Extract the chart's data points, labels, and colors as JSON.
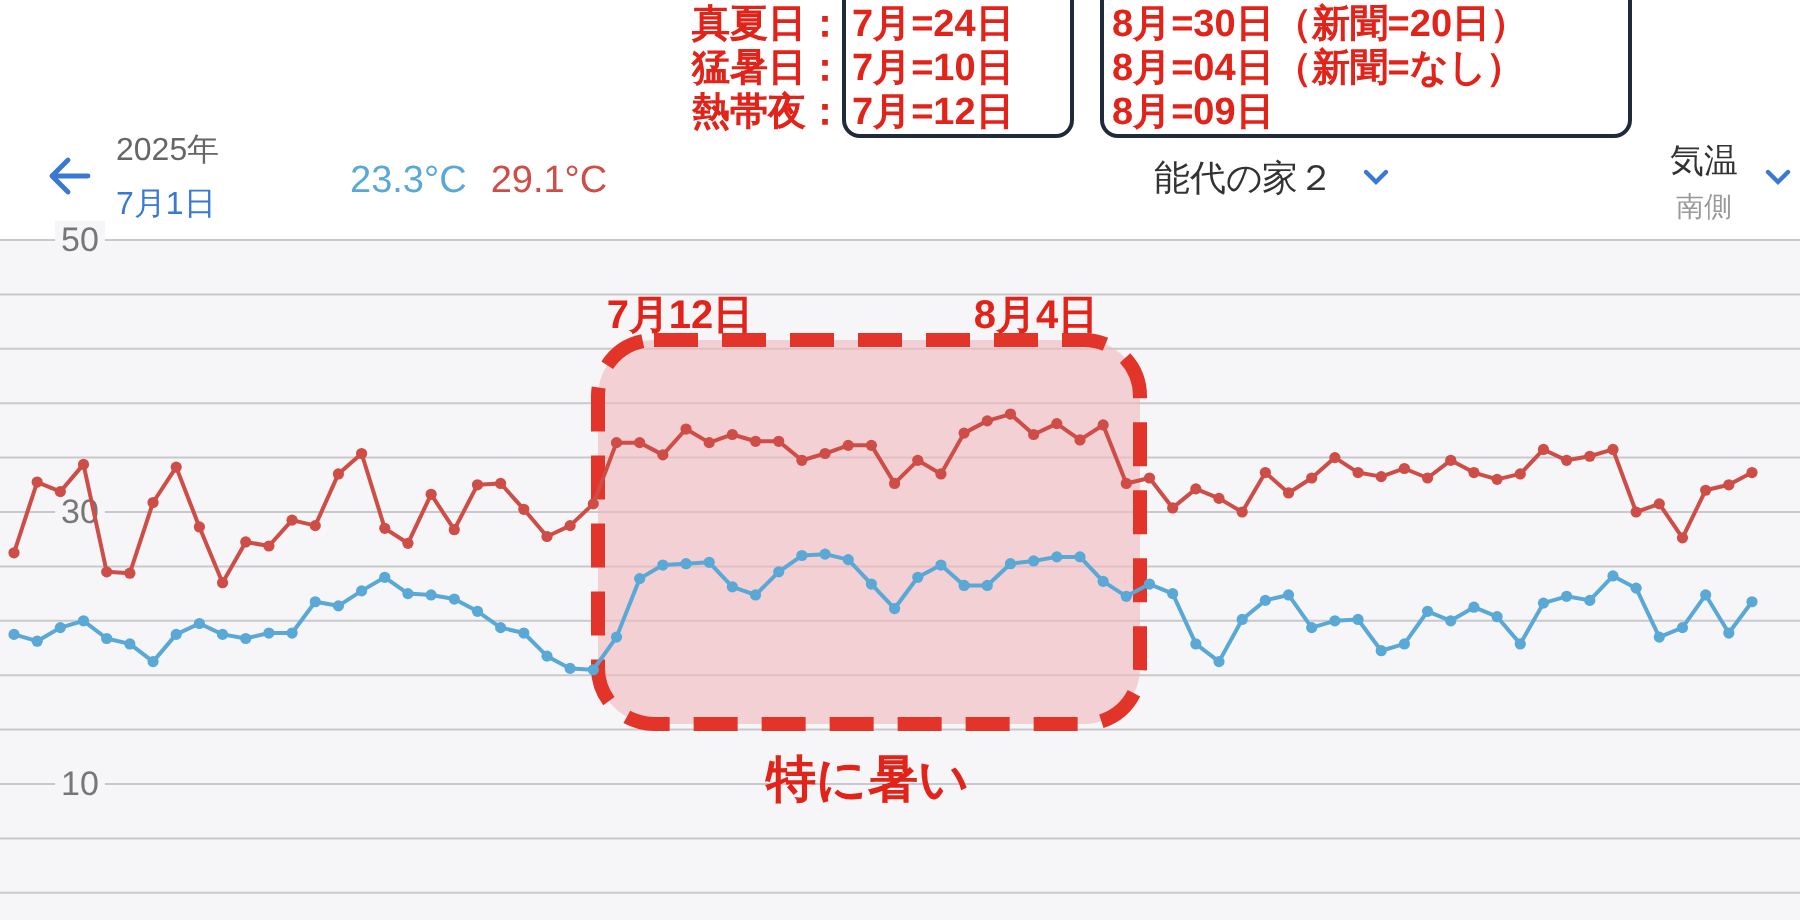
{
  "chart_data": {
    "type": "line",
    "title": "能代の家２",
    "subtitle": "南側",
    "ylabel": "気温",
    "annotations": [
      "真夏日：",
      "7月=24日",
      "8月=30日（新聞=20日）",
      "猛暑日：",
      "7月=10日",
      "8月=04日（新聞=なし）",
      "熱帯夜：",
      "7月=12日",
      "8月=09日",
      "7月12日",
      "8月4日",
      "特に暑い",
      "2025年",
      "7月1日"
    ],
    "categories": [
      null,
      null,
      null,
      null,
      null,
      null,
      null,
      null,
      null,
      null,
      null,
      null,
      null,
      null,
      null,
      null,
      null,
      null,
      null,
      null,
      null,
      null,
      null,
      null,
      null,
      null,
      null,
      null,
      null,
      null,
      null,
      null,
      null,
      null,
      null,
      null,
      null,
      null,
      null,
      null,
      null,
      null,
      null,
      null,
      null,
      null,
      null,
      null,
      null,
      null,
      null,
      null,
      null,
      null,
      null,
      null,
      null,
      null,
      null,
      null,
      null,
      null,
      null,
      null,
      null,
      null,
      null,
      null,
      null,
      null,
      null,
      null,
      null,
      null,
      null,
      null
    ],
    "series": [
      {
        "name": "23.3°C",
        "color": "#5aa8d6",
        "values": [
          21.0,
          20.5,
          21.5,
          22.0,
          20.7,
          20.3,
          19.0,
          21.0,
          21.8,
          21.0,
          20.7,
          21.1,
          21.1,
          23.4,
          23.1,
          24.2,
          25.2,
          24.0,
          23.9,
          23.6,
          22.7,
          21.5,
          21.1,
          19.4,
          18.5,
          18.4,
          20.8,
          25.1,
          26.1,
          26.2,
          26.3,
          24.5,
          23.9,
          25.6,
          26.8,
          26.9,
          26.5,
          24.7,
          22.9,
          25.2,
          26.1,
          24.6,
          24.6,
          26.2,
          26.4,
          26.7,
          26.7,
          24.9,
          23.8,
          24.7,
          24.0,
          20.3,
          19.0,
          22.1,
          23.5,
          23.9,
          21.5,
          22.0,
          22.1,
          19.8,
          20.3,
          22.7,
          22.0,
          23.0,
          22.3,
          20.3,
          23.3,
          23.8,
          23.5,
          25.3,
          24.4,
          20.8,
          21.5,
          23.9,
          21.1,
          23.4
        ]
      },
      {
        "name": "29.1°C",
        "color": "#cf4d47",
        "values": [
          27.0,
          32.2,
          31.5,
          33.5,
          25.6,
          25.5,
          30.7,
          33.3,
          28.9,
          24.8,
          27.8,
          27.5,
          29.4,
          29.0,
          32.8,
          34.3,
          28.8,
          27.7,
          31.3,
          28.7,
          32.0,
          32.1,
          30.2,
          28.2,
          29.0,
          30.6,
          35.1,
          35.1,
          34.2,
          36.1,
          35.1,
          35.7,
          35.2,
          35.2,
          33.8,
          34.3,
          34.9,
          34.9,
          32.1,
          33.8,
          32.8,
          35.8,
          36.7,
          37.2,
          35.7,
          36.5,
          35.3,
          36.4,
          32.1,
          32.5,
          30.3,
          31.7,
          31.0,
          30.0,
          32.9,
          31.4,
          32.5,
          34.0,
          32.9,
          32.6,
          33.2,
          32.5,
          33.8,
          32.9,
          32.4,
          32.8,
          34.6,
          33.8,
          34.1,
          34.6,
          30.0,
          30.6,
          28.1,
          31.6,
          32.0,
          32.9
        ]
      }
    ],
    "ylim": [
      0,
      50
    ],
    "yticks": [
      {
        "value": 2,
        "label": null
      },
      {
        "value": 6,
        "label": null
      },
      10,
      {
        "value": 14,
        "label": null
      },
      {
        "value": 18,
        "label": null
      },
      {
        "value": 22,
        "label": null
      },
      {
        "value": 26,
        "label": null
      },
      30,
      {
        "value": 34,
        "label": null
      },
      {
        "value": 38,
        "label": null
      },
      {
        "value": 42,
        "label": null
      },
      {
        "value": 46,
        "label": null
      },
      50
    ],
    "grid": "y",
    "legend": "top left",
    "marker": "circle",
    "line_style": "solid"
  }
}
